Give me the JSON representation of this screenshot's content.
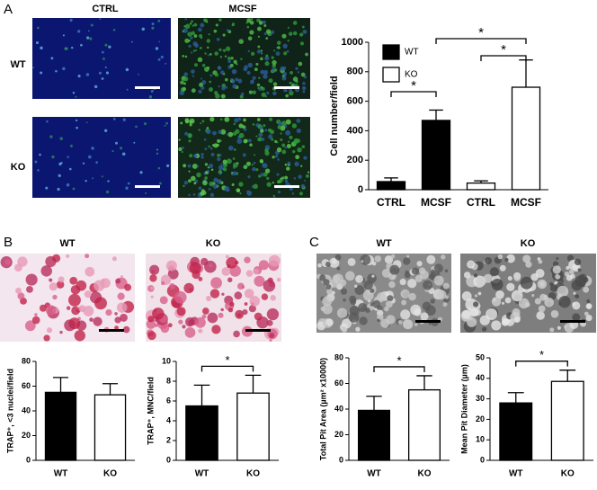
{
  "panels": [
    "A",
    "B",
    "C"
  ],
  "image_labels": {
    "a_columns": [
      "CTRL",
      "MCSF"
    ],
    "a_rows": [
      "WT",
      "KO"
    ],
    "b_columns": [
      "WT",
      "KO"
    ],
    "c_columns": [
      "WT",
      "KO"
    ]
  },
  "chart_data": [
    {
      "type": "bar",
      "ylabel": "Cell number/field",
      "categories": [
        "CTRL",
        "MCSF",
        "CTRL",
        "MCSF"
      ],
      "ylim": [
        0,
        1000
      ],
      "yticks": [
        0,
        200,
        400,
        600,
        800,
        1000
      ],
      "legend": true,
      "series": [
        {
          "name": "WT",
          "color": "#000000",
          "values": [
            55,
            470,
            null,
            null
          ],
          "errors": [
            25,
            70,
            null,
            null
          ]
        },
        {
          "name": "KO",
          "color": "#ffffff",
          "values": [
            null,
            null,
            45,
            695
          ],
          "errors": [
            null,
            null,
            15,
            185
          ]
        }
      ],
      "annotations": [
        {
          "text": "*",
          "between": [
            0,
            1
          ]
        },
        {
          "text": "*",
          "between": [
            1,
            3
          ]
        },
        {
          "text": "*",
          "between": [
            2,
            3
          ]
        }
      ]
    },
    {
      "type": "bar",
      "ylabel": "TRAP⁺, <3 nuclei/field",
      "categories": [
        "WT",
        "KO"
      ],
      "ylim": [
        0,
        80
      ],
      "yticks": [
        0,
        20,
        40,
        60,
        80
      ],
      "legend": false,
      "series": [
        {
          "name": "WT",
          "color": "#000000",
          "values": [
            55,
            null
          ],
          "errors": [
            12,
            null
          ]
        },
        {
          "name": "KO",
          "color": "#ffffff",
          "values": [
            null,
            53
          ],
          "errors": [
            null,
            9
          ]
        }
      ],
      "annotations": []
    },
    {
      "type": "bar",
      "ylabel": "TRAP⁺, MNC/field",
      "categories": [
        "WT",
        "KO"
      ],
      "ylim": [
        0,
        10
      ],
      "yticks": [
        0,
        2,
        4,
        6,
        8,
        10
      ],
      "legend": false,
      "series": [
        {
          "name": "WT",
          "color": "#000000",
          "values": [
            5.5,
            null
          ],
          "errors": [
            2.1,
            null
          ]
        },
        {
          "name": "KO",
          "color": "#ffffff",
          "values": [
            null,
            6.8
          ],
          "errors": [
            null,
            1.8
          ]
        }
      ],
      "annotations": [
        {
          "text": "*",
          "between": [
            0,
            1
          ]
        }
      ]
    },
    {
      "type": "bar",
      "ylabel": "Total Pit Area (µm² x10000)",
      "categories": [
        "WT",
        "KO"
      ],
      "ylim": [
        0,
        80
      ],
      "yticks": [
        0,
        20,
        40,
        60,
        80
      ],
      "legend": false,
      "series": [
        {
          "name": "WT",
          "color": "#000000",
          "values": [
            39,
            null
          ],
          "errors": [
            11,
            null
          ]
        },
        {
          "name": "KO",
          "color": "#ffffff",
          "values": [
            null,
            55
          ],
          "errors": [
            null,
            11
          ]
        }
      ],
      "annotations": [
        {
          "text": "*",
          "between": [
            0,
            1
          ]
        }
      ]
    },
    {
      "type": "bar",
      "ylabel": "Mean Pit Diameter (µm)",
      "categories": [
        "WT",
        "KO"
      ],
      "ylim": [
        0,
        50
      ],
      "yticks": [
        0,
        10,
        20,
        30,
        40,
        50
      ],
      "legend": false,
      "series": [
        {
          "name": "WT",
          "color": "#000000",
          "values": [
            28,
            null
          ],
          "errors": [
            5,
            null
          ]
        },
        {
          "name": "KO",
          "color": "#ffffff",
          "values": [
            null,
            38.5
          ],
          "errors": [
            null,
            5.5
          ]
        }
      ],
      "annotations": [
        {
          "text": "*",
          "between": [
            0,
            1
          ]
        }
      ]
    }
  ]
}
